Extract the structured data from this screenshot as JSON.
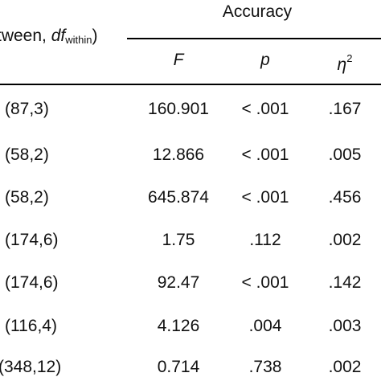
{
  "table": {
    "group_title": "Accuracy",
    "df_header": {
      "prefix": "tween,",
      "df_symbol": "df",
      "df_sub": "within",
      "suffix": ")"
    },
    "columns": {
      "f": "F",
      "p": "p",
      "eta_symbol": "η",
      "eta_sup": "2"
    },
    "rows": [
      {
        "df": "(87,3)",
        "f": "160.901",
        "p": "< .001",
        "eta": ".167"
      },
      {
        "df": "(58,2)",
        "f": "12.866",
        "p": "< .001",
        "eta": ".005"
      },
      {
        "df": "(58,2)",
        "f": "645.874",
        "p": "< .001",
        "eta": ".456"
      },
      {
        "df": "(174,6)",
        "f": "1.75",
        "p": ".112",
        "eta": ".002"
      },
      {
        "df": "(174,6)",
        "f": "92.47",
        "p": "< .001",
        "eta": ".142"
      },
      {
        "df": "(116,4)",
        "f": "4.126",
        "p": ".004",
        "eta": ".003"
      },
      {
        "df": "(348,12)",
        "f": "0.714",
        "p": ".738",
        "eta": ".002"
      }
    ]
  }
}
